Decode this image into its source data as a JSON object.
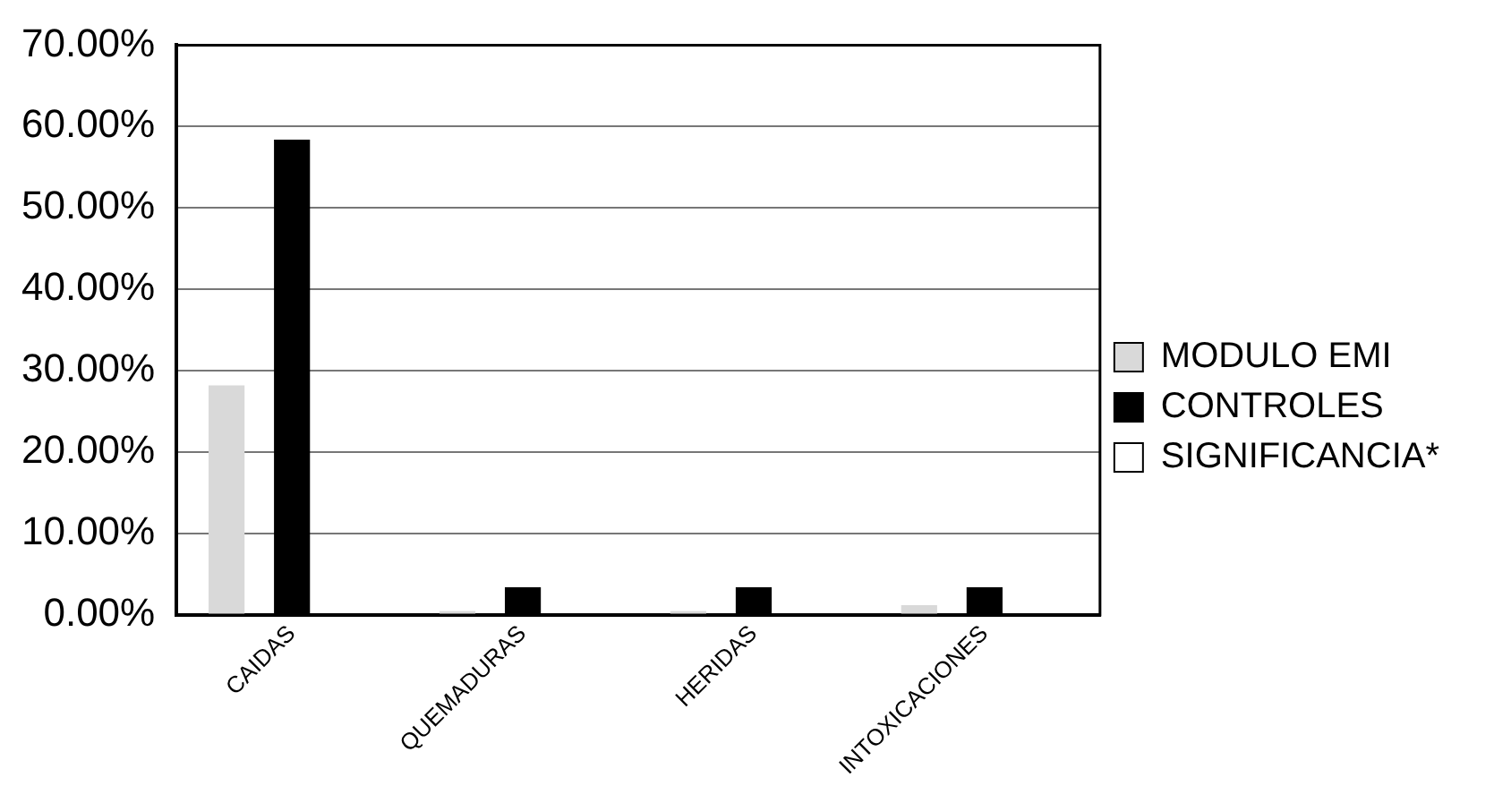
{
  "chart_data": {
    "type": "bar",
    "categories": [
      "CAIDAS",
      "QUEMADURAS",
      "HERIDAS",
      "INTOXICACIONES"
    ],
    "series": [
      {
        "name": "MODULO EMI",
        "color": "#d9d9d9",
        "values": [
          28.2,
          0.5,
          0.5,
          1.2
        ]
      },
      {
        "name": "CONTROLES",
        "color": "#000000",
        "values": [
          58.4,
          3.4,
          3.4,
          3.4
        ]
      },
      {
        "name": "SIGNIFICANCIA*",
        "color": "#ffffff",
        "values": [
          null,
          null,
          null,
          null
        ]
      }
    ],
    "ylim": [
      0,
      70
    ],
    "yticks": [
      {
        "value": 0,
        "label": "0.00%"
      },
      {
        "value": 10,
        "label": "10.00%"
      },
      {
        "value": 20,
        "label": "20.00%"
      },
      {
        "value": 30,
        "label": "30.00%"
      },
      {
        "value": 40,
        "label": "40.00%"
      },
      {
        "value": 50,
        "label": "50.00%"
      },
      {
        "value": 60,
        "label": "60.00%"
      },
      {
        "value": 70,
        "label": "70.00%"
      }
    ],
    "grid": "y",
    "legend": "right"
  }
}
